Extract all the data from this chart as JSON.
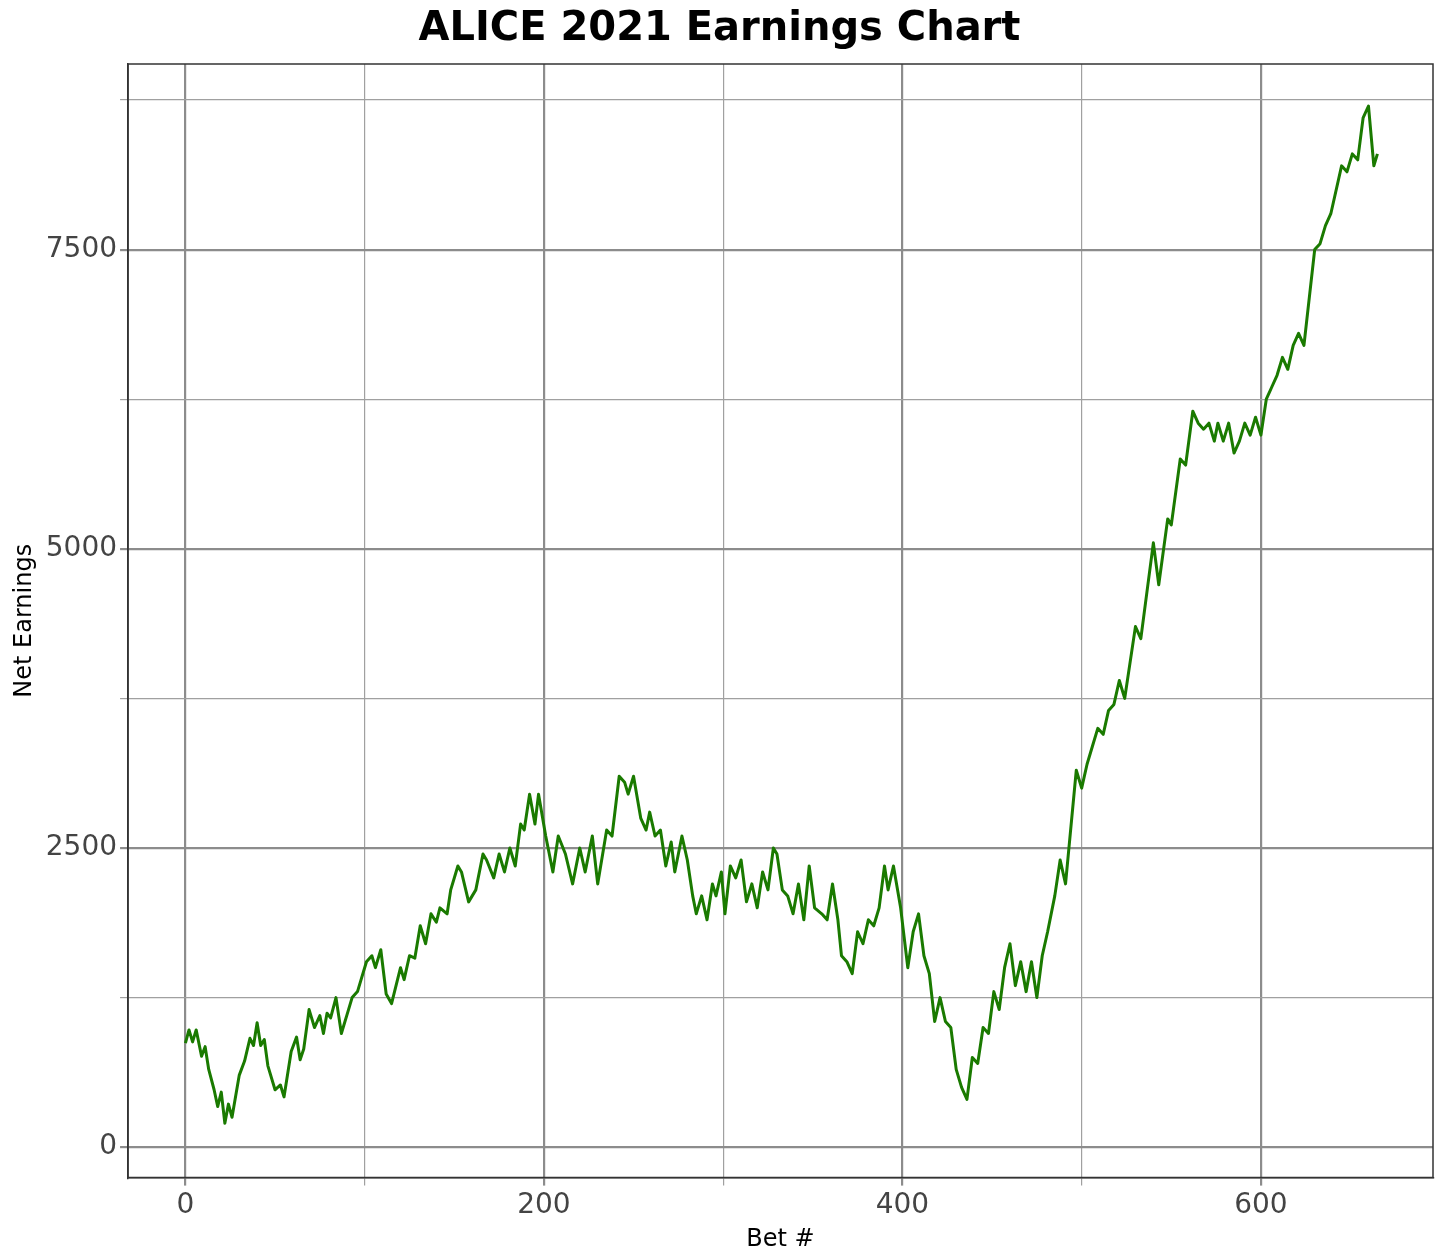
{
  "chart_data": {
    "type": "line",
    "title": "ALICE 2021 Earnings Chart",
    "xlabel": "Bet #",
    "ylabel": "Net Earnings",
    "x": [
      0,
      2,
      4,
      6,
      9,
      11,
      13,
      16,
      18,
      20,
      22,
      24,
      26,
      30,
      33,
      36,
      38,
      40,
      42,
      44,
      46,
      50,
      53,
      55,
      59,
      62,
      64,
      66,
      69,
      72,
      75,
      77,
      79,
      81,
      84,
      87,
      90,
      93,
      96,
      98,
      101,
      104,
      106,
      109,
      112,
      115,
      120,
      122,
      125,
      128,
      131,
      134,
      137,
      140,
      142,
      146,
      148,
      152,
      154,
      158,
      162,
      166,
      168,
      172,
      175,
      178,
      181,
      184,
      187,
      189,
      192,
      195,
      197,
      201,
      205,
      208,
      212,
      216,
      220,
      223,
      227,
      230,
      235,
      238,
      242,
      245,
      247,
      250,
      254,
      257,
      259,
      262,
      265,
      268,
      271,
      273,
      277,
      280,
      283,
      285,
      288,
      291,
      294,
      296,
      299,
      301,
      304,
      307,
      310,
      313,
      316,
      319,
      322,
      325,
      328,
      330,
      333,
      336,
      339,
      342,
      345,
      348,
      351,
      355,
      358,
      361,
      364,
      366,
      369,
      372,
      375,
      378,
      381,
      384,
      387,
      390,
      392,
      395,
      399,
      403,
      406,
      409,
      412,
      415,
      418,
      421,
      424,
      427,
      430,
      433,
      436,
      439,
      442,
      445,
      448,
      451,
      454,
      457,
      460,
      463,
      466,
      469,
      472,
      475,
      478,
      481,
      485,
      488,
      491,
      497,
      500,
      503,
      506,
      509,
      512,
      515,
      518,
      521,
      524,
      530,
      533,
      540,
      543,
      548,
      550,
      555,
      558,
      562,
      565,
      568,
      571,
      574,
      576,
      579,
      582,
      585,
      588,
      591,
      594,
      597,
      600,
      603,
      606,
      609,
      612,
      615,
      618,
      621,
      624,
      630,
      633,
      636,
      639,
      645,
      648,
      651,
      654,
      657,
      660,
      663,
      665
    ],
    "series": [
      {
        "color": "#1a7a00",
        "values": [
          870,
          980,
          880,
          980,
          760,
          840,
          650,
          480,
          340,
          460,
          200,
          360,
          250,
          600,
          720,
          910,
          850,
          1040,
          850,
          900,
          680,
          480,
          520,
          420,
          800,
          920,
          730,
          820,
          1150,
          1000,
          1100,
          950,
          1120,
          1080,
          1250,
          950,
          1100,
          1250,
          1300,
          1400,
          1550,
          1600,
          1500,
          1650,
          1280,
          1200,
          1500,
          1400,
          1600,
          1580,
          1850,
          1700,
          1950,
          1880,
          2000,
          1950,
          2150,
          2350,
          2300,
          2050,
          2150,
          2450,
          2400,
          2250,
          2450,
          2300,
          2500,
          2350,
          2700,
          2650,
          2950,
          2700,
          2950,
          2600,
          2300,
          2600,
          2450,
          2200,
          2500,
          2300,
          2600,
          2200,
          2650,
          2600,
          3100,
          3050,
          2950,
          3100,
          2750,
          2650,
          2800,
          2600,
          2650,
          2350,
          2550,
          2300,
          2600,
          2400,
          2100,
          1950,
          2100,
          1900,
          2200,
          2100,
          2300,
          1950,
          2350,
          2250,
          2400,
          2050,
          2200,
          2000,
          2300,
          2150,
          2500,
          2450,
          2150,
          2100,
          1950,
          2200,
          1900,
          2350,
          2000,
          1950,
          1900,
          2200,
          1900,
          1600,
          1550,
          1450,
          1800,
          1700,
          1900,
          1850,
          2000,
          2350,
          2150,
          2350,
          2000,
          1500,
          1800,
          1950,
          1600,
          1450,
          1050,
          1250,
          1050,
          1000,
          650,
          500,
          400,
          750,
          700,
          1000,
          950,
          1300,
          1150,
          1500,
          1700,
          1350,
          1550,
          1300,
          1550,
          1250,
          1600,
          1800,
          2100,
          2400,
          2200,
          3150,
          3000,
          3200,
          3350,
          3500,
          3450,
          3650,
          3700,
          3900,
          3750,
          4350,
          4250,
          5050,
          4700,
          5250,
          5200,
          5750,
          5700,
          6150,
          6050,
          6000,
          6050,
          5900,
          6050,
          5900,
          6050,
          5800,
          5900,
          6050,
          5950,
          6100,
          5950,
          6250,
          6350,
          6450,
          6600,
          6500,
          6700,
          6800,
          6700,
          7500,
          7550,
          7700,
          7800,
          8200,
          8150,
          8300,
          8250,
          8600,
          8700,
          8200,
          8300
        ]
      }
    ],
    "xlim": [
      -32,
      696
    ],
    "ylim": [
      -254,
      9051
    ],
    "xticks": [
      0,
      {
        "value": 100,
        "label": null
      },
      200,
      {
        "value": 300,
        "label": null
      },
      400,
      {
        "value": 500,
        "label": null
      },
      600
    ],
    "yticks": [
      0,
      {
        "value": 1250,
        "label": null
      },
      2500,
      {
        "value": 3750,
        "label": null
      },
      5000,
      {
        "value": 6250,
        "label": null
      },
      7500,
      {
        "value": 8750,
        "label": null
      }
    ],
    "grid": true,
    "legend": false,
    "marker": "none",
    "line_style": "solid"
  }
}
